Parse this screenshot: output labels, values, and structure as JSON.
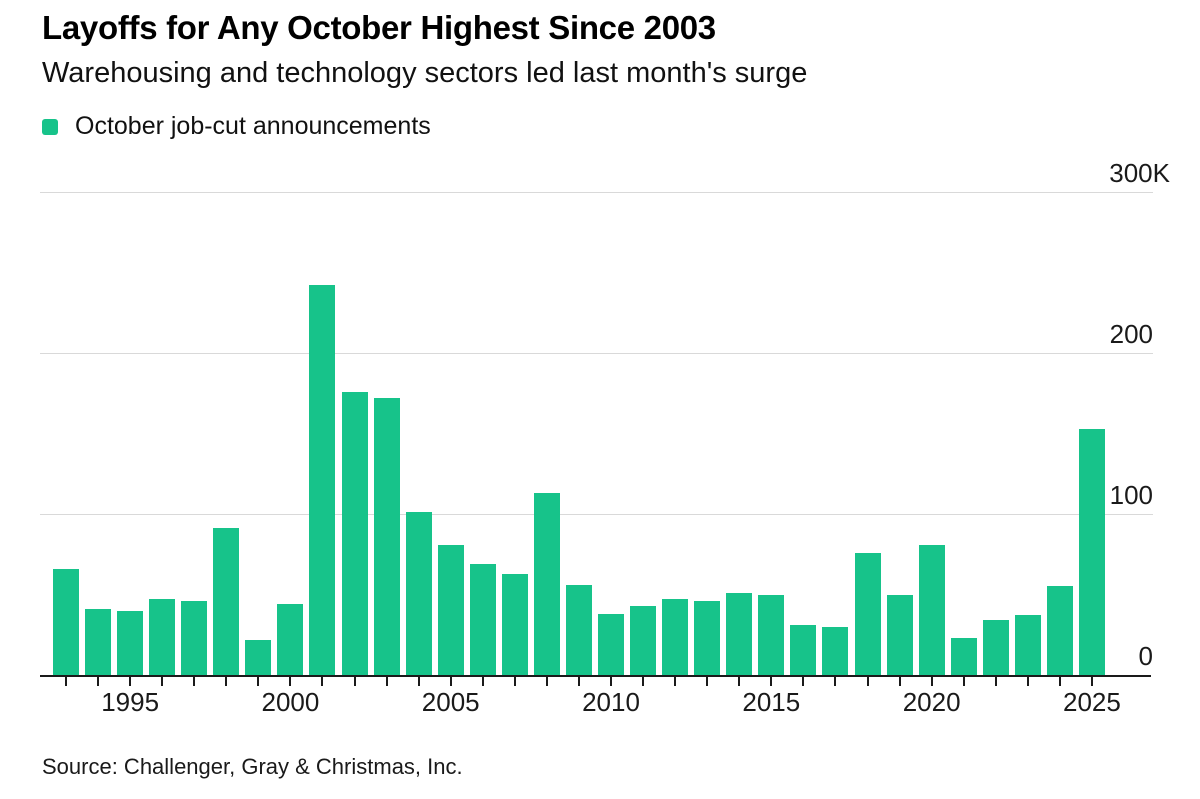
{
  "chart_data": {
    "type": "bar",
    "title": "Layoffs for Any October Highest Since 2003",
    "subtitle": "Warehousing and technology sectors led last month's surge",
    "legend": [
      "October job-cut announcements"
    ],
    "legend_position": "top-left",
    "unit": "thousands of announced job cuts",
    "categories": [
      1993,
      1994,
      1995,
      1996,
      1997,
      1998,
      1999,
      2000,
      2001,
      2002,
      2003,
      2004,
      2005,
      2006,
      2007,
      2008,
      2009,
      2010,
      2011,
      2012,
      2013,
      2014,
      2015,
      2016,
      2017,
      2018,
      2019,
      2020,
      2021,
      2022,
      2023,
      2024,
      2025
    ],
    "values": [
      66,
      41,
      40,
      47,
      46,
      91,
      22,
      44,
      242,
      176,
      172,
      101,
      81,
      69,
      63,
      113,
      56,
      38,
      43,
      47,
      46,
      51,
      50,
      31,
      30,
      76,
      50,
      81,
      23,
      34,
      37,
      55,
      153
    ],
    "ylim": [
      0,
      300
    ],
    "y_ticks": [
      {
        "v": 300,
        "label": "300K"
      },
      {
        "v": 200,
        "label": "200"
      },
      {
        "v": 100,
        "label": "100"
      },
      {
        "v": 0,
        "label": "0"
      }
    ],
    "x_tick_years_labeled": [
      1995,
      2000,
      2005,
      2010,
      2015,
      2020,
      2025
    ],
    "grid": "horizontal",
    "bar_color": "#17c38a",
    "source": "Source: Challenger, Gray & Christmas, Inc."
  }
}
